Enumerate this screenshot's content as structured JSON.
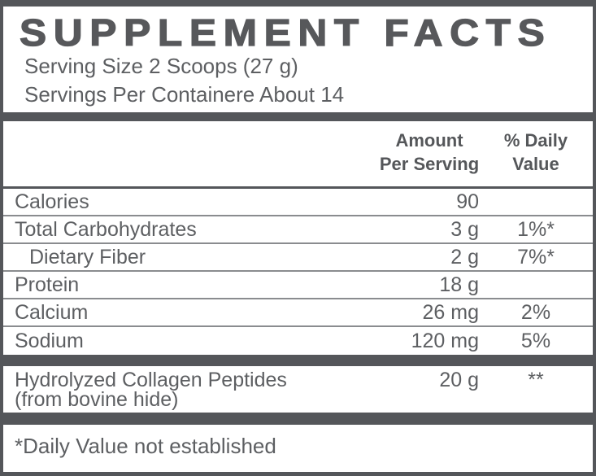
{
  "panel": {
    "title": "SUPPLEMENT FACTS",
    "serving_size": "Serving Size 2 Scoops (27 g)",
    "servings_per_container": "Servings Per Containere About 14",
    "columns": {
      "amount": [
        "Amount",
        "Per Serving"
      ],
      "daily_value": [
        "% Daily",
        "Value"
      ]
    },
    "rows": [
      {
        "name": "Calories",
        "amount": "90",
        "dv": ""
      },
      {
        "name": "Total Carbohydrates",
        "amount": "3 g",
        "dv": "1%*"
      },
      {
        "name": "Dietary Fiber",
        "amount": "2 g",
        "dv": "7%*"
      },
      {
        "name": "Protein",
        "amount": "18 g",
        "dv": ""
      },
      {
        "name": "Calcium",
        "amount": "26 mg",
        "dv": "2%"
      },
      {
        "name": "Sodium",
        "amount": "120 mg",
        "dv": "5%"
      }
    ],
    "other_ingredient": {
      "name": "Hydrolyzed Collagen Peptides",
      "detail": "(from bovine hide)",
      "amount": "20 g",
      "dv": "**"
    },
    "footnote": "*Daily Value not established",
    "colors": {
      "ink": "#54565a",
      "body_text": "#5d5f62",
      "thin_line": "#8a8c8f",
      "background": "#ffffff"
    }
  }
}
